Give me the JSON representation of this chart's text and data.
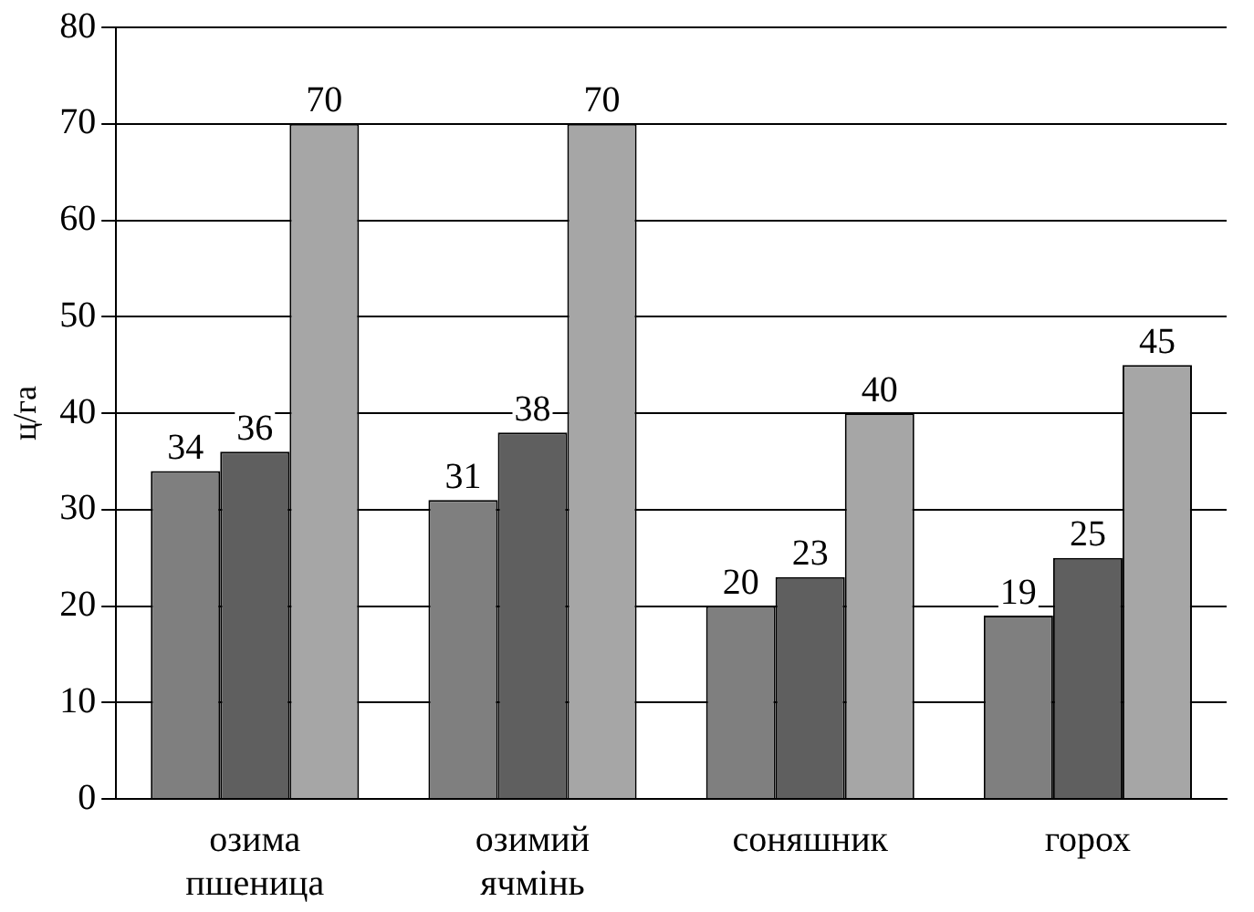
{
  "chart_data": {
    "type": "bar",
    "ylabel": "ц/га",
    "categories": [
      "озима пшеница",
      "озимий ячмінь",
      "соняшник",
      "горох"
    ],
    "series": [
      {
        "color": "#7f7f7f",
        "values": [
          34,
          31,
          20,
          19
        ]
      },
      {
        "color": "#5f5f5f",
        "values": [
          36,
          38,
          23,
          25
        ]
      },
      {
        "color": "#a6a6a6",
        "values": [
          70,
          70,
          40,
          45
        ]
      }
    ],
    "ylim": [
      0,
      80
    ],
    "yticks": [
      0,
      10,
      20,
      30,
      40,
      50,
      60,
      70,
      80
    ],
    "grid": "y",
    "legend": false,
    "data_labels": true
  }
}
